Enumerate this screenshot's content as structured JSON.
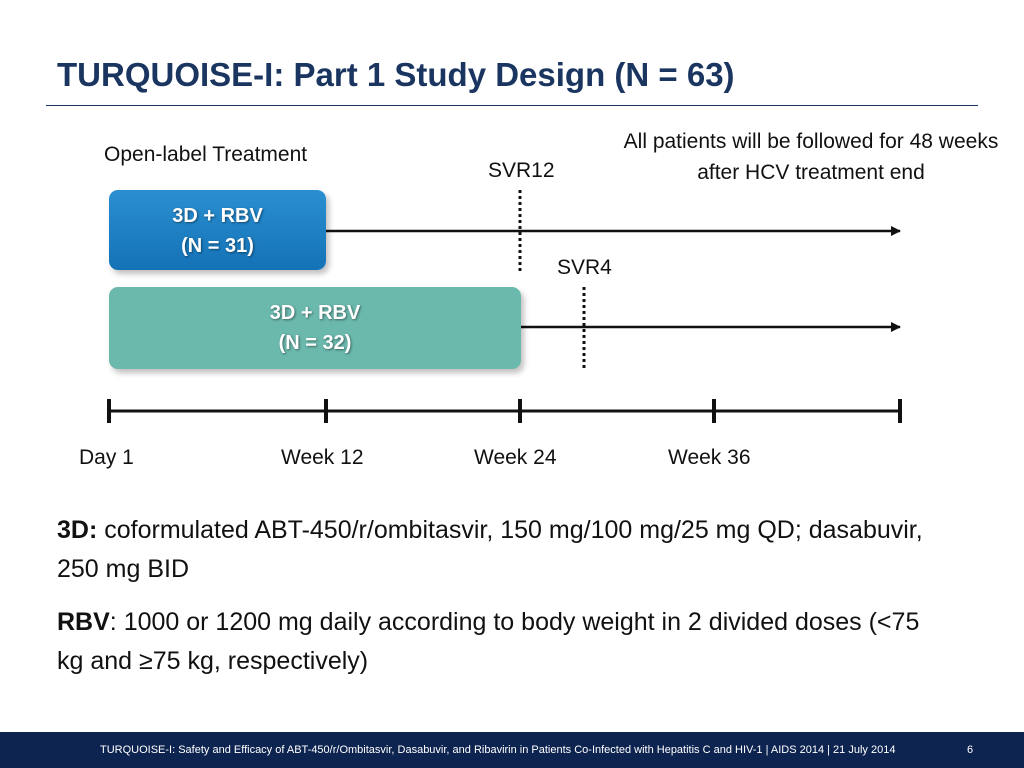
{
  "slide": {
    "title": "TURQUOISE-I: Part 1 Study Design (N = 63)"
  },
  "diagram": {
    "treatment_label": "Open-label Treatment",
    "followup_note": "All patients will be followed for 48 weeks after HCV treatment end",
    "arms": [
      {
        "line1": "3D + RBV",
        "line2": "(N = 31)",
        "color": "#1b7fc4"
      },
      {
        "line1": "3D + RBV",
        "line2": "(N = 32)",
        "color": "#6bb8ad"
      }
    ],
    "markers": [
      "SVR12",
      "SVR4"
    ],
    "timeline_labels": [
      "Day 1",
      "Week 12",
      "Week 24",
      "Week 36"
    ]
  },
  "definitions": {
    "d3_term": "3D:",
    "d3_text": " coformulated ABT-450/r/ombitasvir, 150 mg/100 mg/25 mg QD; dasabuvir, 250 mg BID",
    "rbv_term": "RBV",
    "rbv_text": ": 1000 or 1200 mg daily according to body weight in 2 divided doses (<75 kg and ≥75 kg, respectively)"
  },
  "footer": {
    "citation": "TURQUOISE-I: Safety and Efficacy of ABT-450/r/Ombitasvir, Dasabuvir, and Ribavirin in Patients Co-Infected with Hepatitis C and HIV-1 | AIDS 2014 | 21 July 2014",
    "page": "6"
  },
  "colors": {
    "title": "#1a3560",
    "footer_bg": "#0e2450"
  }
}
